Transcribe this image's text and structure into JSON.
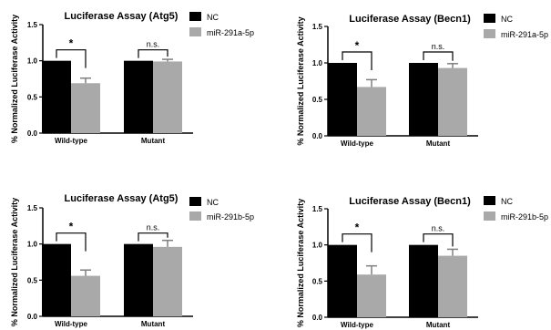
{
  "colors": {
    "nc": "#000000",
    "mir": "#a9a9a9",
    "axis": "#000000",
    "err": "#7f7f7f"
  },
  "chart_data": [
    {
      "type": "bar",
      "title": "Luciferase Assay (Atg5)",
      "ylabel": "% Normalized Luciferase Activity",
      "categories": [
        "Wild-type",
        "Mutant"
      ],
      "ylim": [
        0,
        1.5
      ],
      "yticks": [
        "0.0",
        "0.5",
        "1.0",
        "1.5"
      ],
      "series": [
        {
          "name": "NC",
          "values": [
            1.0,
            1.0
          ],
          "errors": [
            0.0,
            0.0
          ]
        },
        {
          "name": "miR-291a-5p",
          "values": [
            0.69,
            0.99
          ],
          "errors": [
            0.07,
            0.03
          ]
        }
      ],
      "annotations": [
        "*",
        "n.s."
      ]
    },
    {
      "type": "bar",
      "title": "Luciferase Assay (Becn1)",
      "ylabel": "% Normalized Luciferase Activity",
      "categories": [
        "Wild-type",
        "Mutant"
      ],
      "ylim": [
        0,
        1.5
      ],
      "yticks": [
        "0.0",
        "0.5",
        "1.0",
        "1.5"
      ],
      "series": [
        {
          "name": "NC",
          "values": [
            1.0,
            1.0
          ],
          "errors": [
            0.0,
            0.0
          ]
        },
        {
          "name": "miR-291a-5p",
          "values": [
            0.67,
            0.93
          ],
          "errors": [
            0.1,
            0.06
          ]
        }
      ],
      "annotations": [
        "*",
        "n.s."
      ]
    },
    {
      "type": "bar",
      "title": "Luciferase Assay (Atg5)",
      "ylabel": "% Normalized Luciferase Activity",
      "categories": [
        "Wild-type",
        "Mutant"
      ],
      "ylim": [
        0,
        1.5
      ],
      "yticks": [
        "0.0",
        "0.5",
        "1.0",
        "1.5"
      ],
      "series": [
        {
          "name": "NC",
          "values": [
            1.0,
            1.0
          ],
          "errors": [
            0.0,
            0.0
          ]
        },
        {
          "name": "miR-291b-5p",
          "values": [
            0.56,
            0.96
          ],
          "errors": [
            0.08,
            0.09
          ]
        }
      ],
      "annotations": [
        "*",
        "n.s."
      ]
    },
    {
      "type": "bar",
      "title": "Luciferase Assay (Becn1)",
      "ylabel": "% Normalized Luciferase Activity",
      "categories": [
        "Wild-type",
        "Mutant"
      ],
      "ylim": [
        0,
        1.5
      ],
      "yticks": [
        "0.0",
        "0.5",
        "1.0",
        "1.5"
      ],
      "series": [
        {
          "name": "NC",
          "values": [
            1.0,
            1.0
          ],
          "errors": [
            0.0,
            0.0
          ]
        },
        {
          "name": "miR-291b-5p",
          "values": [
            0.59,
            0.85
          ],
          "errors": [
            0.12,
            0.09
          ]
        }
      ],
      "annotations": [
        "*",
        "n.s."
      ]
    }
  ]
}
